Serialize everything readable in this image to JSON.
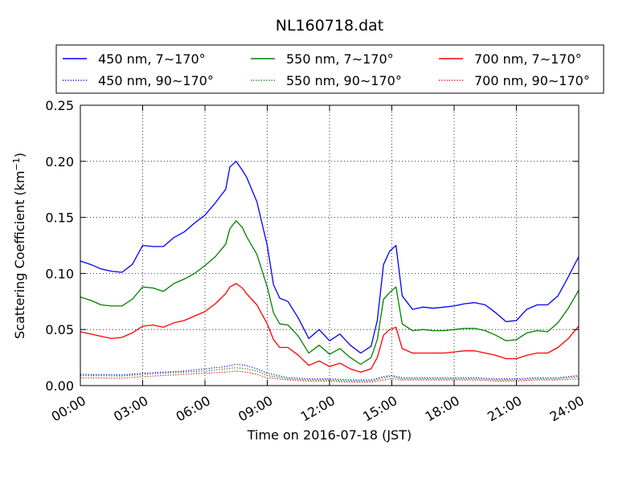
{
  "chart_data": {
    "type": "line",
    "title": "NL160718.dat",
    "xlabel": "Time on 2016-07-18 (JST)",
    "ylabel": "Scattering Coefficient (km",
    "ylabel_sup": "−1",
    "ylabel_close": ")",
    "ylim": [
      0,
      0.25
    ],
    "xlim": [
      0,
      24
    ],
    "grid": true,
    "legend_position": "top",
    "x_tick_labels": [
      "00:00",
      "03:00",
      "06:00",
      "09:00",
      "12:00",
      "15:00",
      "18:00",
      "21:00",
      "24:00"
    ],
    "y_tick_labels": [
      "0.00",
      "0.05",
      "0.10",
      "0.15",
      "0.20",
      "0.25"
    ],
    "series": [
      {
        "name": "450 nm, 7∼170°",
        "color": "#0000ff",
        "style": "solid",
        "points": [
          [
            0,
            0.111
          ],
          [
            0.5,
            0.108
          ],
          [
            1,
            0.104
          ],
          [
            1.5,
            0.102
          ],
          [
            2,
            0.101
          ],
          [
            2.5,
            0.108
          ],
          [
            3,
            0.125
          ],
          [
            3.5,
            0.124
          ],
          [
            4,
            0.124
          ],
          [
            4.5,
            0.132
          ],
          [
            5,
            0.137
          ],
          [
            5.5,
            0.145
          ],
          [
            6,
            0.152
          ],
          [
            6.5,
            0.163
          ],
          [
            7,
            0.175
          ],
          [
            7.2,
            0.195
          ],
          [
            7.5,
            0.2
          ],
          [
            7.8,
            0.192
          ],
          [
            8,
            0.186
          ],
          [
            8.5,
            0.164
          ],
          [
            9,
            0.125
          ],
          [
            9.3,
            0.09
          ],
          [
            9.6,
            0.078
          ],
          [
            10,
            0.075
          ],
          [
            10.5,
            0.06
          ],
          [
            11,
            0.042
          ],
          [
            11.5,
            0.05
          ],
          [
            12,
            0.04
          ],
          [
            12.5,
            0.046
          ],
          [
            13,
            0.036
          ],
          [
            13.5,
            0.029
          ],
          [
            14,
            0.035
          ],
          [
            14.3,
            0.058
          ],
          [
            14.6,
            0.108
          ],
          [
            14.9,
            0.12
          ],
          [
            15.2,
            0.125
          ],
          [
            15.5,
            0.08
          ],
          [
            16,
            0.068
          ],
          [
            16.5,
            0.07
          ],
          [
            17,
            0.069
          ],
          [
            17.5,
            0.07
          ],
          [
            18,
            0.071
          ],
          [
            18.5,
            0.073
          ],
          [
            19,
            0.074
          ],
          [
            19.5,
            0.072
          ],
          [
            20,
            0.065
          ],
          [
            20.5,
            0.057
          ],
          [
            21,
            0.058
          ],
          [
            21.5,
            0.068
          ],
          [
            22,
            0.072
          ],
          [
            22.5,
            0.072
          ],
          [
            23,
            0.08
          ],
          [
            23.5,
            0.097
          ],
          [
            24,
            0.115
          ]
        ]
      },
      {
        "name": "550 nm, 7∼170°",
        "color": "#008000",
        "style": "solid",
        "points": [
          [
            0,
            0.079
          ],
          [
            0.5,
            0.076
          ],
          [
            1,
            0.072
          ],
          [
            1.5,
            0.071
          ],
          [
            2,
            0.071
          ],
          [
            2.5,
            0.077
          ],
          [
            3,
            0.088
          ],
          [
            3.5,
            0.087
          ],
          [
            4,
            0.084
          ],
          [
            4.5,
            0.091
          ],
          [
            5,
            0.095
          ],
          [
            5.5,
            0.1
          ],
          [
            6,
            0.107
          ],
          [
            6.5,
            0.115
          ],
          [
            7,
            0.126
          ],
          [
            7.2,
            0.14
          ],
          [
            7.5,
            0.147
          ],
          [
            7.8,
            0.141
          ],
          [
            8,
            0.133
          ],
          [
            8.5,
            0.117
          ],
          [
            9,
            0.088
          ],
          [
            9.3,
            0.065
          ],
          [
            9.6,
            0.055
          ],
          [
            10,
            0.054
          ],
          [
            10.5,
            0.044
          ],
          [
            11,
            0.029
          ],
          [
            11.5,
            0.036
          ],
          [
            12,
            0.028
          ],
          [
            12.5,
            0.033
          ],
          [
            13,
            0.025
          ],
          [
            13.5,
            0.019
          ],
          [
            14,
            0.025
          ],
          [
            14.3,
            0.041
          ],
          [
            14.6,
            0.077
          ],
          [
            14.9,
            0.083
          ],
          [
            15.2,
            0.088
          ],
          [
            15.5,
            0.055
          ],
          [
            16,
            0.049
          ],
          [
            16.5,
            0.05
          ],
          [
            17,
            0.049
          ],
          [
            17.5,
            0.049
          ],
          [
            18,
            0.05
          ],
          [
            18.5,
            0.051
          ],
          [
            19,
            0.051
          ],
          [
            19.5,
            0.049
          ],
          [
            20,
            0.045
          ],
          [
            20.5,
            0.04
          ],
          [
            21,
            0.041
          ],
          [
            21.5,
            0.047
          ],
          [
            22,
            0.049
          ],
          [
            22.5,
            0.048
          ],
          [
            23,
            0.056
          ],
          [
            23.5,
            0.069
          ],
          [
            24,
            0.085
          ]
        ]
      },
      {
        "name": "700 nm, 7∼170°",
        "color": "#ff0000",
        "style": "solid",
        "points": [
          [
            0,
            0.048
          ],
          [
            0.5,
            0.046
          ],
          [
            1,
            0.044
          ],
          [
            1.5,
            0.042
          ],
          [
            2,
            0.043
          ],
          [
            2.5,
            0.047
          ],
          [
            3,
            0.053
          ],
          [
            3.5,
            0.054
          ],
          [
            4,
            0.052
          ],
          [
            4.5,
            0.056
          ],
          [
            5,
            0.058
          ],
          [
            5.5,
            0.062
          ],
          [
            6,
            0.066
          ],
          [
            6.5,
            0.073
          ],
          [
            7,
            0.082
          ],
          [
            7.2,
            0.088
          ],
          [
            7.5,
            0.091
          ],
          [
            7.8,
            0.087
          ],
          [
            8,
            0.082
          ],
          [
            8.5,
            0.072
          ],
          [
            9,
            0.055
          ],
          [
            9.3,
            0.041
          ],
          [
            9.6,
            0.034
          ],
          [
            10,
            0.034
          ],
          [
            10.5,
            0.027
          ],
          [
            11,
            0.018
          ],
          [
            11.5,
            0.022
          ],
          [
            12,
            0.017
          ],
          [
            12.5,
            0.02
          ],
          [
            13,
            0.015
          ],
          [
            13.5,
            0.012
          ],
          [
            14,
            0.015
          ],
          [
            14.3,
            0.025
          ],
          [
            14.6,
            0.045
          ],
          [
            14.9,
            0.05
          ],
          [
            15.2,
            0.052
          ],
          [
            15.5,
            0.033
          ],
          [
            16,
            0.029
          ],
          [
            16.5,
            0.029
          ],
          [
            17,
            0.029
          ],
          [
            17.5,
            0.029
          ],
          [
            18,
            0.03
          ],
          [
            18.5,
            0.031
          ],
          [
            19,
            0.031
          ],
          [
            19.5,
            0.029
          ],
          [
            20,
            0.027
          ],
          [
            20.5,
            0.024
          ],
          [
            21,
            0.024
          ],
          [
            21.5,
            0.027
          ],
          [
            22,
            0.029
          ],
          [
            22.5,
            0.029
          ],
          [
            23,
            0.034
          ],
          [
            23.5,
            0.042
          ],
          [
            24,
            0.053
          ]
        ]
      },
      {
        "name": "450 nm, 90∼170°",
        "color": "#0000ff",
        "style": "dotted",
        "points": [
          [
            0,
            0.01
          ],
          [
            2,
            0.0095
          ],
          [
            3,
            0.011
          ],
          [
            4,
            0.012
          ],
          [
            5,
            0.013
          ],
          [
            6,
            0.015
          ],
          [
            7,
            0.017
          ],
          [
            7.5,
            0.019
          ],
          [
            8,
            0.018
          ],
          [
            8.5,
            0.015
          ],
          [
            9,
            0.011
          ],
          [
            10,
            0.007
          ],
          [
            11,
            0.006
          ],
          [
            12,
            0.006
          ],
          [
            13,
            0.005
          ],
          [
            14,
            0.005
          ],
          [
            14.6,
            0.008
          ],
          [
            15,
            0.009
          ],
          [
            15.5,
            0.007
          ],
          [
            16,
            0.007
          ],
          [
            18,
            0.007
          ],
          [
            19,
            0.007
          ],
          [
            20,
            0.006
          ],
          [
            21,
            0.006
          ],
          [
            22,
            0.007
          ],
          [
            23,
            0.007
          ],
          [
            24,
            0.009
          ]
        ]
      },
      {
        "name": "550 nm, 90∼170°",
        "color": "#008000",
        "style": "dotted",
        "points": [
          [
            0,
            0.009
          ],
          [
            2,
            0.0085
          ],
          [
            3,
            0.01
          ],
          [
            4,
            0.011
          ],
          [
            5,
            0.012
          ],
          [
            6,
            0.013
          ],
          [
            7,
            0.015
          ],
          [
            7.5,
            0.016
          ],
          [
            8,
            0.015
          ],
          [
            8.5,
            0.013
          ],
          [
            9,
            0.009
          ],
          [
            10,
            0.006
          ],
          [
            11,
            0.005
          ],
          [
            12,
            0.005
          ],
          [
            13,
            0.004
          ],
          [
            14,
            0.004
          ],
          [
            14.6,
            0.007
          ],
          [
            15,
            0.008
          ],
          [
            15.5,
            0.006
          ],
          [
            16,
            0.006
          ],
          [
            18,
            0.006
          ],
          [
            19,
            0.006
          ],
          [
            20,
            0.005
          ],
          [
            21,
            0.005
          ],
          [
            22,
            0.006
          ],
          [
            23,
            0.006
          ],
          [
            24,
            0.008
          ]
        ]
      },
      {
        "name": "700 nm, 90∼170°",
        "color": "#ff0000",
        "style": "dotted",
        "points": [
          [
            0,
            0.007
          ],
          [
            2,
            0.0065
          ],
          [
            3,
            0.008
          ],
          [
            4,
            0.009
          ],
          [
            5,
            0.01
          ],
          [
            6,
            0.011
          ],
          [
            7,
            0.012
          ],
          [
            7.5,
            0.013
          ],
          [
            8,
            0.012
          ],
          [
            8.5,
            0.01
          ],
          [
            9,
            0.007
          ],
          [
            10,
            0.005
          ],
          [
            11,
            0.004
          ],
          [
            12,
            0.004
          ],
          [
            13,
            0.003
          ],
          [
            14,
            0.003
          ],
          [
            14.6,
            0.005
          ],
          [
            15,
            0.006
          ],
          [
            15.5,
            0.005
          ],
          [
            16,
            0.005
          ],
          [
            18,
            0.005
          ],
          [
            19,
            0.005
          ],
          [
            20,
            0.004
          ],
          [
            21,
            0.004
          ],
          [
            22,
            0.005
          ],
          [
            23,
            0.005
          ],
          [
            24,
            0.006
          ]
        ]
      }
    ]
  }
}
